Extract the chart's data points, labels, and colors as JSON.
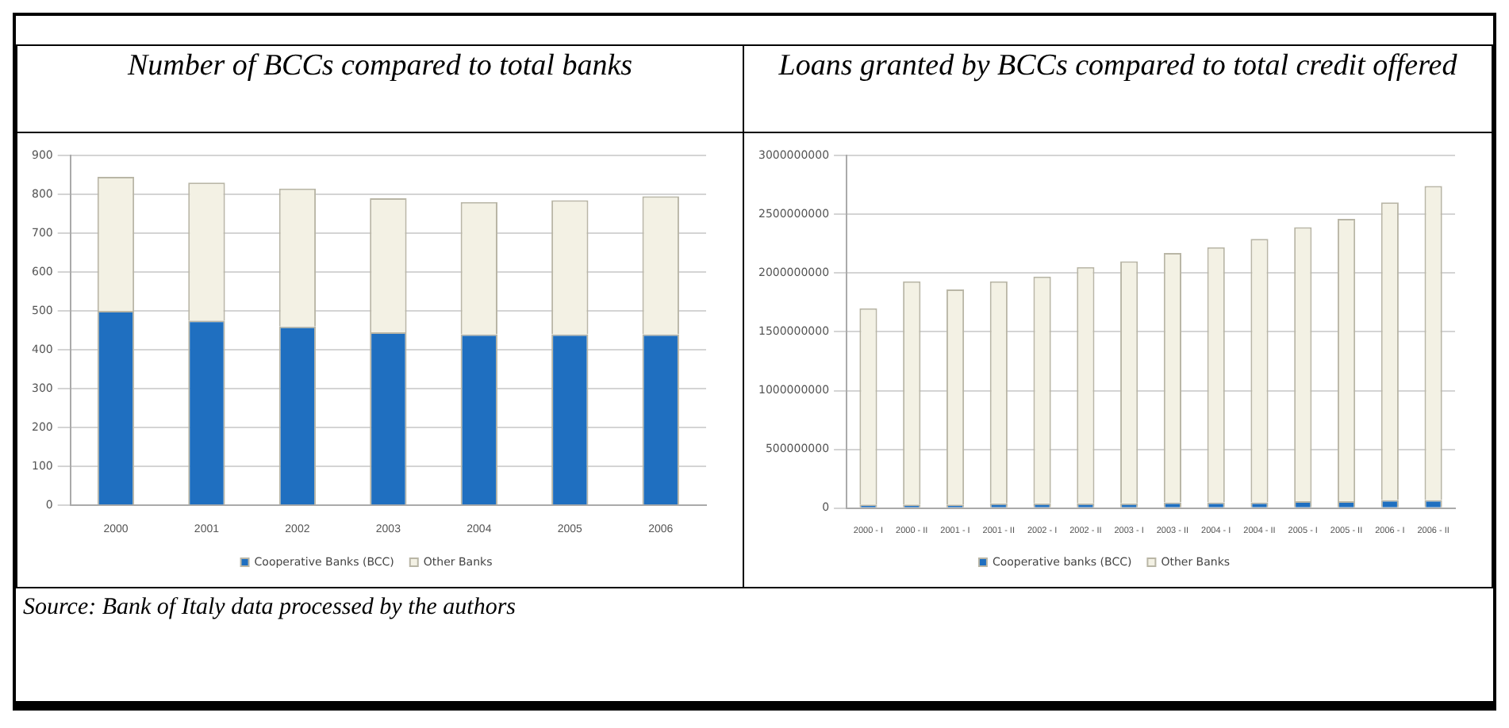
{
  "chart_data": [
    {
      "type": "bar",
      "title": "Number of BCCs compared to total banks",
      "categories": [
        "2000",
        "2001",
        "2002",
        "2003",
        "2004",
        "2005",
        "2006"
      ],
      "stacked": true,
      "ylim": [
        0,
        900
      ],
      "yticks": [
        0,
        100,
        200,
        300,
        400,
        500,
        600,
        700,
        800,
        900
      ],
      "grid": "y",
      "legend": "bottom",
      "annotations": [
        "Source: Bank of  Italy data processed by the authors"
      ],
      "series": [
        {
          "name": "Cooperative Banks (BCC)",
          "color": "#1f6fc0",
          "values": [
            500,
            475,
            460,
            445,
            440,
            440,
            440
          ]
        },
        {
          "name": "Other Banks",
          "color": "#f3f1e4",
          "values": [
            345,
            355,
            355,
            345,
            340,
            345,
            355
          ]
        }
      ]
    },
    {
      "type": "bar",
      "title": "Loans granted by BCCs compared to total credit offered",
      "categories": [
        "2000 - I",
        "2000 - II",
        "2001 - I",
        "2001 - II",
        "2002 - I",
        "2002 - II",
        "2003 - I",
        "2003 - II",
        "2004 - I",
        "2004 - II",
        "2005 - I",
        "2005 - II",
        "2006 - I",
        "2006 - II"
      ],
      "stacked": true,
      "ylim": [
        0,
        3000000000
      ],
      "yticks": [
        0,
        500000000,
        1000000000,
        1500000000,
        2000000000,
        2500000000,
        3000000000
      ],
      "grid": "y",
      "legend": "bottom",
      "series": [
        {
          "name": "Cooperative banks (BCC)",
          "color": "#1f6fc0",
          "values": [
            30000000,
            30000000,
            30000000,
            40000000,
            40000000,
            40000000,
            40000000,
            50000000,
            50000000,
            50000000,
            60000000,
            60000000,
            70000000,
            70000000
          ]
        },
        {
          "name": "Other Banks",
          "color": "#f3f1e4",
          "values": [
            1670000000,
            1900000000,
            1830000000,
            1890000000,
            1930000000,
            2010000000,
            2060000000,
            2120000000,
            2170000000,
            2240000000,
            2330000000,
            2400000000,
            2530000000,
            2670000000
          ]
        }
      ]
    }
  ]
}
